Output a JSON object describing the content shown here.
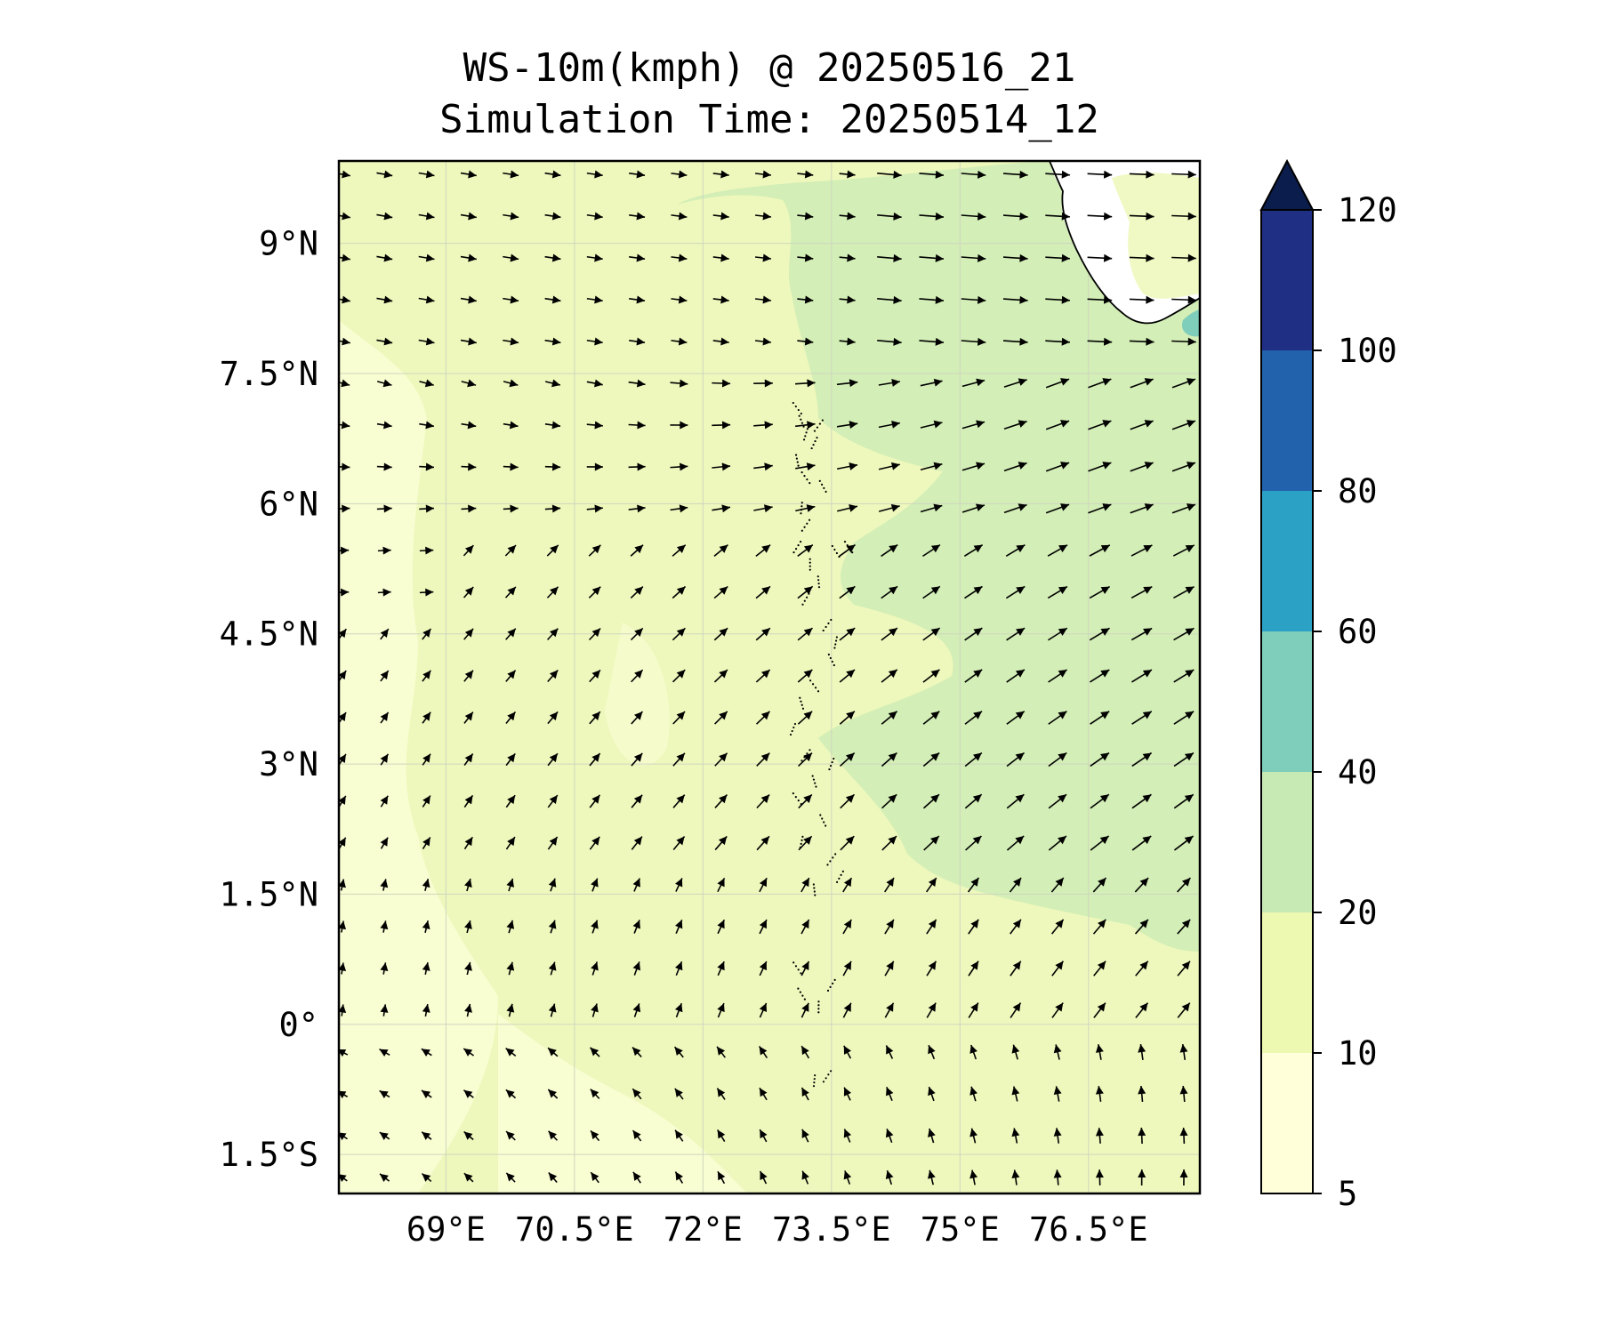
{
  "title": {
    "line1": "WS-10m(kmph) @ 20250516_21",
    "line2": "Simulation Time: 20250514_12"
  },
  "map": {
    "lon_range": [
      67.75,
      77.8
    ],
    "lat_range": [
      -1.95,
      9.95
    ],
    "lon_ticks": [
      {
        "value": 69.0,
        "label": "69°E"
      },
      {
        "value": 70.5,
        "label": "70.5°E"
      },
      {
        "value": 72.0,
        "label": "72°E"
      },
      {
        "value": 73.5,
        "label": "73.5°E"
      },
      {
        "value": 75.0,
        "label": "75°E"
      },
      {
        "value": 76.5,
        "label": "76.5°E"
      }
    ],
    "lat_ticks": [
      {
        "value": 9.0,
        "label": "9°N"
      },
      {
        "value": 7.5,
        "label": "7.5°N"
      },
      {
        "value": 6.0,
        "label": "6°N"
      },
      {
        "value": 4.5,
        "label": "4.5°N"
      },
      {
        "value": 3.0,
        "label": "3°N"
      },
      {
        "value": 1.5,
        "label": "1.5°N"
      },
      {
        "value": 0.0,
        "label": "0°"
      },
      {
        "value": -1.5,
        "label": "1.5°S"
      }
    ],
    "gridlines": true,
    "field": "WS-10m",
    "units": "kmph"
  },
  "colorbar": {
    "levels": [
      5,
      10,
      20,
      40,
      60,
      80,
      100,
      120
    ],
    "colors": [
      "#ffffd9",
      "#edf8b1",
      "#c7e9b4",
      "#7fcdbb",
      "#2ca1c6",
      "#2262ac",
      "#1f2f84"
    ],
    "extend_color": "#0b1d4c",
    "extend": "max"
  },
  "colors": {
    "land": "#ffffff",
    "coast": "#000000",
    "arrow": "#000000",
    "frame": "#000000"
  }
}
